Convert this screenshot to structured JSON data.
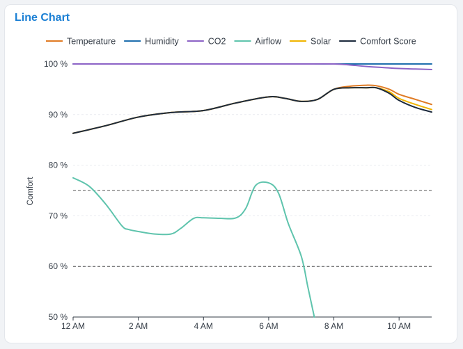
{
  "card": {
    "title": "Line Chart"
  },
  "chart_data": {
    "type": "line",
    "title": "Line Chart",
    "ylabel": "Comfort",
    "xlabel": "",
    "x_ticks": [
      "12 AM",
      "2 AM",
      "4 AM",
      "6 AM",
      "8 AM",
      "10 AM"
    ],
    "y_ticks": [
      "50 %",
      "60 %",
      "70 %",
      "80 %",
      "90 %",
      "100 %"
    ],
    "xlim": [
      0,
      11
    ],
    "ylim": [
      50,
      100
    ],
    "grid": true,
    "legend_position": "top",
    "reference_lines": [
      {
        "y": 75,
        "style": "dashed",
        "color": "#555555"
      },
      {
        "y": 60,
        "style": "dashed",
        "color": "#555555"
      }
    ],
    "series": [
      {
        "name": "Temperature",
        "color": "#e07b24",
        "x": [
          0,
          1,
          2,
          3,
          4,
          5,
          6,
          6.5,
          7,
          7.5,
          8,
          8.5,
          9,
          9.3,
          9.7,
          10,
          10.5,
          11
        ],
        "y": [
          86.3,
          87.8,
          89.5,
          90.4,
          90.8,
          92.3,
          93.5,
          93.2,
          92.6,
          93.0,
          95.0,
          95.6,
          95.8,
          95.7,
          95.0,
          94.0,
          93.0,
          92.0
        ]
      },
      {
        "name": "Humidity",
        "color": "#1f6fae",
        "x": [
          0,
          1,
          2,
          3,
          4,
          5,
          6,
          7,
          8,
          9,
          10,
          11
        ],
        "y": [
          100,
          100,
          100,
          100,
          100,
          100,
          100,
          100,
          100,
          100,
          100,
          100
        ]
      },
      {
        "name": "CO2",
        "color": "#8c63c6",
        "x": [
          0,
          1,
          2,
          3,
          4,
          5,
          6,
          7,
          8,
          8.5,
          9,
          9.5,
          10,
          10.5,
          11
        ],
        "y": [
          100,
          100,
          100,
          100,
          100,
          100,
          100,
          100,
          100,
          99.8,
          99.5,
          99.3,
          99.1,
          99.0,
          98.9
        ]
      },
      {
        "name": "Airflow",
        "color": "#5fc4ad",
        "x": [
          0,
          0.5,
          1,
          1.5,
          1.7,
          2,
          2.5,
          3,
          3.3,
          3.7,
          4,
          4.5,
          5,
          5.3,
          5.6,
          6,
          6.3,
          6.6,
          7,
          7.2,
          7.4
        ],
        "y": [
          77.5,
          75.8,
          72.3,
          68.0,
          67.3,
          66.9,
          66.4,
          66.4,
          67.5,
          69.5,
          69.6,
          69.5,
          69.6,
          71.5,
          76.0,
          76.5,
          74.5,
          68.5,
          62.0,
          56.0,
          50.0
        ]
      },
      {
        "name": "Solar",
        "color": "#f0b400",
        "x": [
          0,
          1,
          2,
          3,
          4,
          5,
          6,
          6.5,
          7,
          7.5,
          8,
          8.5,
          9,
          9.3,
          9.7,
          10,
          10.5,
          11
        ],
        "y": [
          86.3,
          87.8,
          89.5,
          90.4,
          90.8,
          92.3,
          93.5,
          93.2,
          92.6,
          93.0,
          95.0,
          95.3,
          95.3,
          95.3,
          94.5,
          93.2,
          92.0,
          91.0
        ]
      },
      {
        "name": "Comfort Score",
        "color": "#1c2a3d",
        "x": [
          0,
          1,
          2,
          3,
          4,
          5,
          6,
          6.5,
          7,
          7.5,
          8,
          8.5,
          9,
          9.3,
          9.7,
          10,
          10.5,
          11
        ],
        "y": [
          86.3,
          87.8,
          89.5,
          90.4,
          90.8,
          92.3,
          93.5,
          93.2,
          92.6,
          93.0,
          95.0,
          95.3,
          95.3,
          95.3,
          94.2,
          92.8,
          91.4,
          90.5
        ]
      }
    ]
  }
}
